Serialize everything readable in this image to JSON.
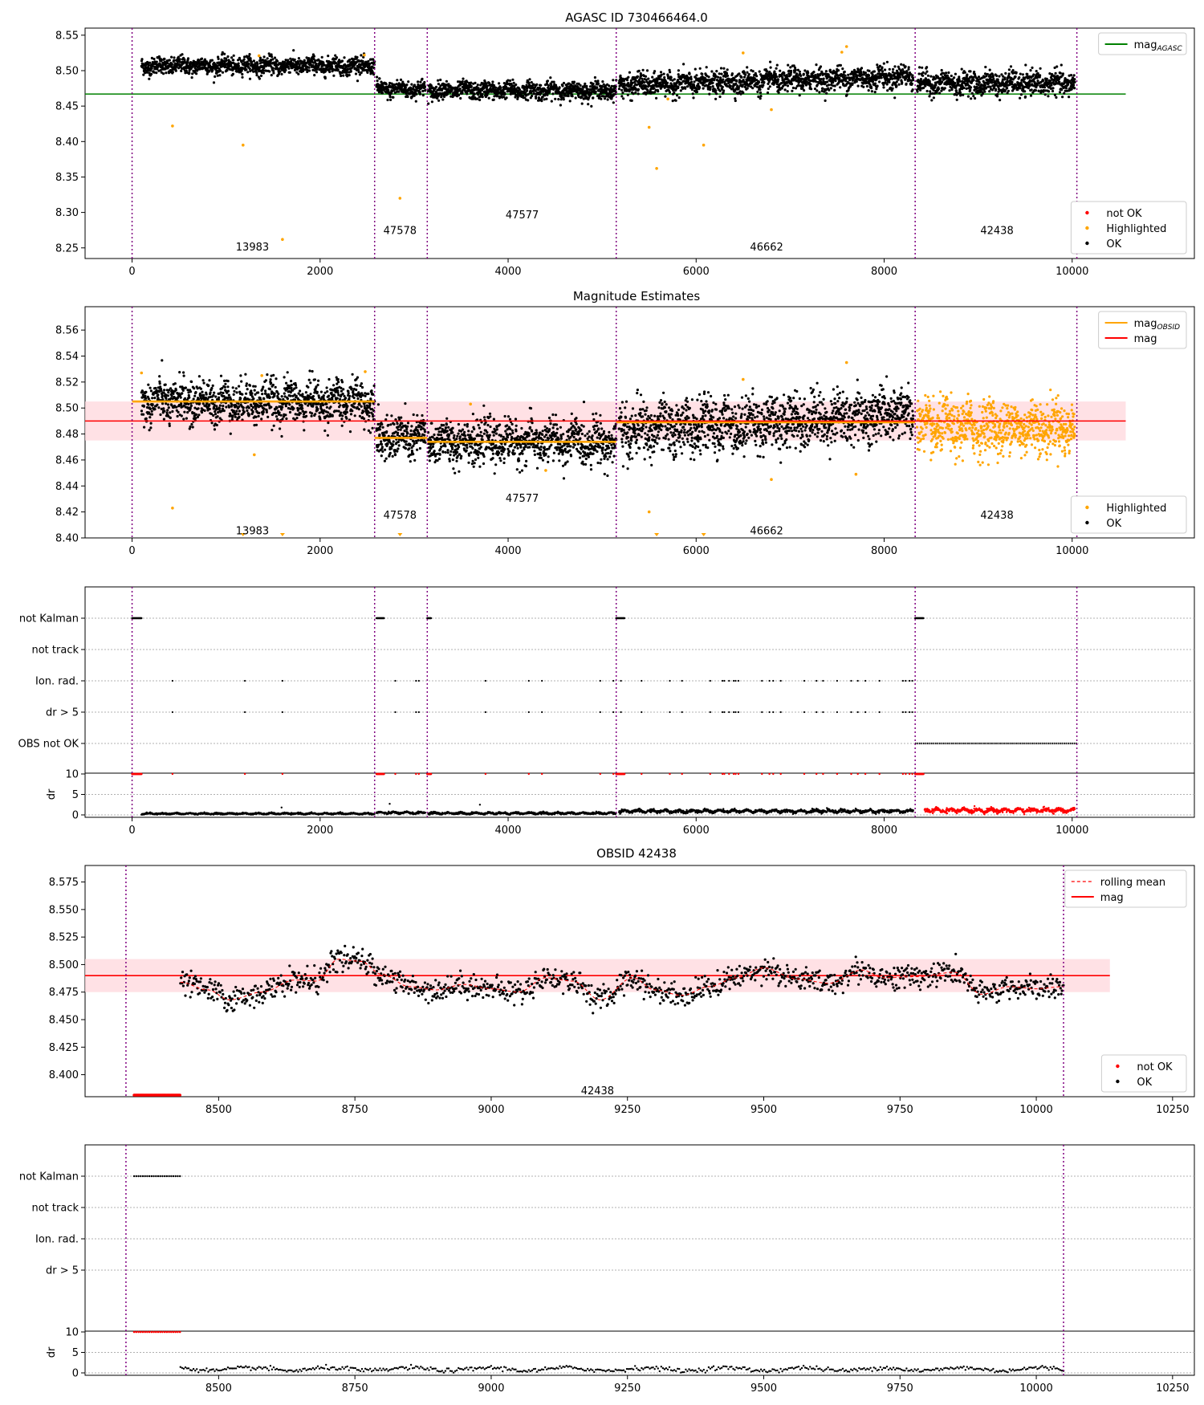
{
  "figure": {
    "background": "#ffffff"
  },
  "colors": {
    "ok": "#000000",
    "highlighted": "#ffa500",
    "not_ok": "#ff0000",
    "mag_agasc": "#008000",
    "mag_obsid": "#ffa500",
    "mag": "#ff0000",
    "band": "#ffd7dc",
    "obsid_lines": "#800080",
    "grid": "#b0b0b0"
  },
  "chart_data": [
    {
      "id": "agasc",
      "type": "scatter",
      "title": "AGASC ID 730466464.0",
      "xlim": [
        -500,
        11300
      ],
      "ylim": [
        8.235,
        8.56
      ],
      "xticks": [
        0,
        2000,
        4000,
        6000,
        8000,
        10000
      ],
      "yticks": [
        8.25,
        8.3,
        8.35,
        8.4,
        8.45,
        8.5,
        8.55
      ],
      "tick_decimals": 2,
      "legend_top": [
        {
          "label": "mag",
          "sub": "AGASC",
          "kind": "line",
          "color": "#008000"
        }
      ],
      "legend_bottom": [
        {
          "label": "not OK",
          "kind": "dot",
          "color": "#ff0000"
        },
        {
          "label": "Highlighted",
          "kind": "dot",
          "color": "#ffa500"
        },
        {
          "label": "OK",
          "kind": "dot",
          "color": "#000000"
        }
      ],
      "hlines": [
        {
          "y": 8.467,
          "x0": -500,
          "x1": 10570,
          "color": "#008000"
        }
      ],
      "segments": [
        {
          "x0": 100,
          "x1": 2580,
          "mean": 8.507,
          "std": 0.006
        },
        {
          "x0": 2600,
          "x1": 3120,
          "mean": 8.474,
          "std": 0.006
        },
        {
          "x0": 3150,
          "x1": 5150,
          "mean": 8.472,
          "std": 0.006
        },
        {
          "x0": 5180,
          "x1": 8310,
          "mean_start": 8.479,
          "mean_end": 8.492,
          "std": 0.008
        },
        {
          "x0": 8350,
          "x1": 10030,
          "mean": 8.482,
          "std": 0.008
        }
      ],
      "highlighted": [
        {
          "x": 430,
          "y": 8.422
        },
        {
          "x": 1180,
          "y": 8.395
        },
        {
          "x": 1600,
          "y": 8.262
        },
        {
          "x": 2850,
          "y": 8.32
        },
        {
          "x": 5500,
          "y": 8.42
        },
        {
          "x": 5580,
          "y": 8.362
        },
        {
          "x": 6080,
          "y": 8.395
        },
        {
          "x": 7600,
          "y": 8.534
        },
        {
          "x": 7550,
          "y": 8.526
        },
        {
          "x": 6500,
          "y": 8.525
        },
        {
          "x": 1350,
          "y": 8.521
        },
        {
          "x": 2470,
          "y": 8.522
        },
        {
          "x": 5700,
          "y": 8.46
        },
        {
          "x": 6800,
          "y": 8.445
        }
      ],
      "obsid_labels": [
        {
          "text": "13983",
          "x": 1280,
          "y": 8.252
        },
        {
          "text": "47578",
          "x": 2850,
          "y": 8.275
        },
        {
          "text": "47577",
          "x": 4150,
          "y": 8.297
        },
        {
          "text": "46662",
          "x": 6750,
          "y": 8.252
        },
        {
          "text": "42438",
          "x": 9200,
          "y": 8.275
        }
      ]
    },
    {
      "id": "estimates",
      "type": "scatter",
      "title": "Magnitude Estimates",
      "xlim": [
        -500,
        11300
      ],
      "ylim": [
        8.4,
        8.578
      ],
      "xticks": [
        0,
        2000,
        4000,
        6000,
        8000,
        10000
      ],
      "yticks": [
        8.4,
        8.42,
        8.44,
        8.46,
        8.48,
        8.5,
        8.52,
        8.54,
        8.56
      ],
      "tick_decimals": 2,
      "legend_top": [
        {
          "label": "mag",
          "sub": "OBSID",
          "kind": "line",
          "color": "#ffa500"
        },
        {
          "label": "mag",
          "sub": "",
          "kind": "line",
          "color": "#ff0000"
        }
      ],
      "legend_bottom": [
        {
          "label": "Highlighted",
          "kind": "dot",
          "color": "#ffa500"
        },
        {
          "label": "OK",
          "kind": "dot",
          "color": "#000000"
        }
      ],
      "band": {
        "y0": 8.475,
        "y1": 8.505,
        "x0": -500,
        "x1": 10570
      },
      "hlines": [
        {
          "y": 8.49,
          "x0": -500,
          "x1": 10570,
          "color": "#ff0000"
        }
      ],
      "obsid_means": [
        {
          "x0": 0,
          "x1": 2580,
          "y": 8.505
        },
        {
          "x0": 2580,
          "x1": 3140,
          "y": 8.477
        },
        {
          "x0": 3140,
          "x1": 5150,
          "y": 8.474
        },
        {
          "x0": 5150,
          "x1": 8330,
          "y": 8.489
        }
      ],
      "segments": [
        {
          "x0": 100,
          "x1": 2580,
          "mean": 8.505,
          "std": 0.008
        },
        {
          "x0": 2600,
          "x1": 3120,
          "mean": 8.477,
          "std": 0.008
        },
        {
          "x0": 3150,
          "x1": 5150,
          "mean": 8.474,
          "std": 0.008
        },
        {
          "x0": 5180,
          "x1": 8310,
          "mean_start": 8.482,
          "mean_end": 8.496,
          "std": 0.01
        },
        {
          "x0": 8350,
          "x1": 10030,
          "mean": 8.485,
          "std": 0.01,
          "color": "highlighted"
        }
      ],
      "highlighted": [
        {
          "x": 430,
          "y": 8.423
        },
        {
          "x": 1380,
          "y": 8.525
        },
        {
          "x": 2480,
          "y": 8.528
        },
        {
          "x": 100,
          "y": 8.527
        },
        {
          "x": 7600,
          "y": 8.535
        },
        {
          "x": 6500,
          "y": 8.522
        },
        {
          "x": 5500,
          "y": 8.42
        },
        {
          "x": 6800,
          "y": 8.445
        },
        {
          "x": 1300,
          "y": 8.464
        },
        {
          "x": 4400,
          "y": 8.452
        },
        {
          "x": 7700,
          "y": 8.449
        },
        {
          "x": 3600,
          "y": 8.503
        }
      ],
      "clipped_markers": [
        1180,
        1600,
        2850,
        5580,
        6080
      ],
      "obsid_labels": [
        {
          "text": "13983",
          "x": 1280,
          "y": 8.406
        },
        {
          "text": "47578",
          "x": 2850,
          "y": 8.418
        },
        {
          "text": "47577",
          "x": 4150,
          "y": 8.431
        },
        {
          "text": "46662",
          "x": 6750,
          "y": 8.406
        },
        {
          "text": "42438",
          "x": 9200,
          "y": 8.418
        }
      ]
    },
    {
      "id": "flags_full",
      "type": "scatter",
      "xlim": [
        -500,
        11300
      ],
      "xticks": [
        0,
        2000,
        4000,
        6000,
        8000,
        10000
      ],
      "flag_labels": [
        "not Kalman",
        "not track",
        "Ion. rad.",
        "dr > 5",
        "OBS not OK"
      ],
      "not_kalman": [
        [
          0,
          100
        ],
        [
          2600,
          2680
        ],
        [
          3140,
          3180
        ],
        [
          5150,
          5240
        ],
        [
          8330,
          8420
        ]
      ],
      "ion_rad": [
        430,
        1200,
        1600,
        2800,
        3020,
        3050,
        3760,
        4220,
        4360,
        4980,
        5120,
        5200,
        5420,
        5720,
        5850,
        6150,
        6280,
        6300,
        6350,
        6400,
        6420,
        6450,
        6700,
        6780,
        6820,
        6900,
        7150,
        7280,
        7350,
        7500,
        7650,
        7720,
        7800,
        7950,
        8200,
        8230,
        8270,
        8300
      ],
      "dr5": [
        430,
        1200,
        1600,
        2800,
        3020,
        3050,
        3760,
        4220,
        4360,
        4980,
        5120,
        5200,
        5420,
        5720,
        5850,
        6150,
        6280,
        6300,
        6350,
        6400,
        6420,
        6450,
        6700,
        6780,
        6820,
        6900,
        7150,
        7280,
        7350,
        7500,
        7650,
        7720,
        7800,
        7950,
        8200,
        8230,
        8270,
        8300
      ],
      "obs_not_ok": [
        8330,
        10050
      ],
      "dr_yticks": [
        0,
        5,
        10
      ],
      "dr_ylabel": "dr",
      "dr_segments": [
        {
          "x0": 100,
          "x1": 2580,
          "mean": 0.3,
          "std": 0.15
        },
        {
          "x0": 2600,
          "x1": 3120,
          "mean": 0.5,
          "std": 0.2
        },
        {
          "x0": 3150,
          "x1": 5150,
          "mean": 0.4,
          "std": 0.2
        },
        {
          "x0": 5180,
          "x1": 8310,
          "mean": 0.9,
          "std": 0.3
        },
        {
          "x0": 8430,
          "x1": 10030,
          "mean": 1.1,
          "std": 0.4,
          "color": "not_ok"
        }
      ],
      "dr_outliers": [
        {
          "x": 2740,
          "y": 2.7
        },
        {
          "x": 3700,
          "y": 2.5
        },
        {
          "x": 1590,
          "y": 1.8
        }
      ],
      "dr_top_red": [
        [
          0,
          100
        ],
        [
          2600,
          2680
        ],
        [
          3140,
          3180
        ],
        [
          5150,
          5240
        ],
        [
          8330,
          8420
        ]
      ]
    },
    {
      "id": "obsid_42438",
      "type": "scatter",
      "title": "OBSID 42438",
      "xlim": [
        8255,
        10290
      ],
      "ylim": [
        8.38,
        8.59
      ],
      "xticks": [
        8500,
        8750,
        9000,
        9250,
        9500,
        9750,
        10000,
        10250
      ],
      "yticks": [
        8.4,
        8.425,
        8.45,
        8.475,
        8.5,
        8.525,
        8.55,
        8.575
      ],
      "tick_decimals": 3,
      "legend_top": [
        {
          "label": "rolling mean",
          "kind": "dashed",
          "color": "#ff0000"
        },
        {
          "label": "mag",
          "kind": "line",
          "color": "#ff0000"
        }
      ],
      "legend_bottom": [
        {
          "label": "not OK",
          "kind": "dot",
          "color": "#ff0000"
        },
        {
          "label": "OK",
          "kind": "dot",
          "color": "#000000"
        }
      ],
      "band": {
        "y0": 8.475,
        "y1": 8.505,
        "x0": 8255,
        "x1": 10135
      },
      "hlines": [
        {
          "y": 8.49,
          "x0": 8255,
          "x1": 10135,
          "color": "#ff0000"
        }
      ],
      "not_ok_run": [
        8345,
        8430
      ],
      "curve_knots": [
        [
          8430,
          8.484
        ],
        [
          8480,
          8.477
        ],
        [
          8520,
          8.468
        ],
        [
          8580,
          8.475
        ],
        [
          8640,
          8.486
        ],
        [
          8680,
          8.485
        ],
        [
          8720,
          8.505
        ],
        [
          8760,
          8.503
        ],
        [
          8800,
          8.491
        ],
        [
          8850,
          8.48
        ],
        [
          8900,
          8.477
        ],
        [
          8950,
          8.482
        ],
        [
          9000,
          8.478
        ],
        [
          9050,
          8.475
        ],
        [
          9100,
          8.488
        ],
        [
          9150,
          8.485
        ],
        [
          9200,
          8.468
        ],
        [
          9260,
          8.488
        ],
        [
          9300,
          8.477
        ],
        [
          9350,
          8.472
        ],
        [
          9400,
          8.48
        ],
        [
          9450,
          8.488
        ],
        [
          9500,
          8.497
        ],
        [
          9560,
          8.487
        ],
        [
          9620,
          8.483
        ],
        [
          9680,
          8.495
        ],
        [
          9720,
          8.488
        ],
        [
          9780,
          8.489
        ],
        [
          9850,
          8.493
        ],
        [
          9900,
          8.473
        ],
        [
          9950,
          8.48
        ],
        [
          10000,
          8.478
        ],
        [
          10050,
          8.48
        ]
      ],
      "obsid_labels": [
        {
          "text": "42438",
          "x": 9195,
          "y": 8.386
        }
      ]
    },
    {
      "id": "flags_obsid",
      "type": "scatter",
      "xlim": [
        8255,
        10290
      ],
      "xticks": [
        8500,
        8750,
        9000,
        9250,
        9500,
        9750,
        10000,
        10250
      ],
      "flag_labels": [
        "not Kalman",
        "not track",
        "Ion. rad.",
        "dr > 5"
      ],
      "not_kalman": [
        [
          8345,
          8430
        ]
      ],
      "dr_yticks": [
        0,
        5,
        10
      ],
      "dr_ylabel": "dr",
      "dr_segments": [
        {
          "x0": 8430,
          "x1": 10050,
          "mean": 0.9,
          "std": 0.45
        }
      ],
      "dr_top_red": [
        [
          8345,
          8430
        ]
      ]
    }
  ],
  "obsid_boundaries": [
    0,
    2580,
    3140,
    5150,
    8330,
    10050
  ]
}
